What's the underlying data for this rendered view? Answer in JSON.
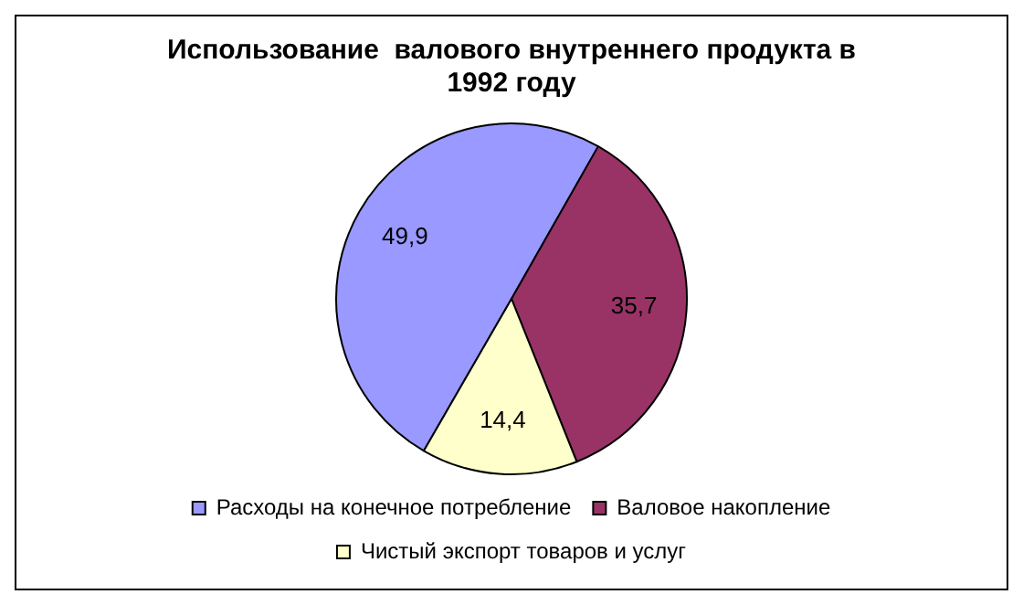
{
  "chart_data": {
    "type": "pie",
    "title": "Использование  валового внутреннего продукта в 1992 году",
    "categories": [
      "Расходы на конечное потребление",
      "Валовое накопление",
      "Чистый экспорт товаров и услуг"
    ],
    "values": [
      49.9,
      35.7,
      14.4
    ],
    "value_labels": [
      "49,9",
      "35,7",
      "14,4"
    ],
    "colors": [
      "#9999ff",
      "#993366",
      "#ffffcc"
    ],
    "legend": "bottom"
  }
}
